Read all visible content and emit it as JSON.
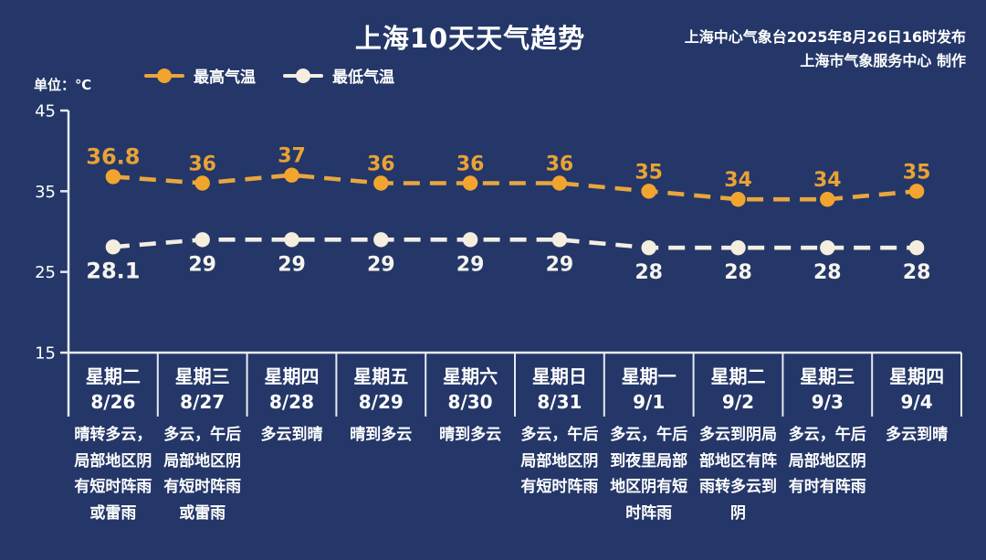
{
  "page": {
    "background": "#243768",
    "text_color": "#FFFFFF"
  },
  "header": {
    "title": "上海10天天气趋势",
    "publisher_line1": "上海中心气象台2025年8月26日16时发布",
    "publisher_line2": "上海市气象服务中心 制作"
  },
  "unit_label": "单位：℃",
  "chart_data": {
    "type": "line",
    "title": "上海10天天气趋势",
    "line_style": "dashed",
    "grid": false,
    "legend_position": "top-left",
    "axis_color": "#E6EAF2",
    "y_axis": {
      "min": 15,
      "max": 45,
      "ticks": [
        45,
        35,
        25,
        15
      ],
      "unit": "℃"
    },
    "categories": [
      {
        "weekday": "星期二",
        "date": "8/26",
        "desc": "晴转多云，局部地区阴有短时阵雨或雷雨"
      },
      {
        "weekday": "星期三",
        "date": "8/27",
        "desc": "多云，午后局部地区阴有短时阵雨或雷雨"
      },
      {
        "weekday": "星期四",
        "date": "8/28",
        "desc": "多云到晴"
      },
      {
        "weekday": "星期五",
        "date": "8/29",
        "desc": "晴到多云"
      },
      {
        "weekday": "星期六",
        "date": "8/30",
        "desc": "晴到多云"
      },
      {
        "weekday": "星期日",
        "date": "8/31",
        "desc": "多云，午后局部地区阴有短时阵雨"
      },
      {
        "weekday": "星期一",
        "date": "9/1",
        "desc": "多云，午后到夜里局部地区阴有短时阵雨"
      },
      {
        "weekday": "星期二",
        "date": "9/2",
        "desc": "多云到阴局部地区有阵雨转多云到阴"
      },
      {
        "weekday": "星期三",
        "date": "9/3",
        "desc": "多云，午后局部地区阴有时有阵雨"
      },
      {
        "weekday": "星期四",
        "date": "9/4",
        "desc": "多云到晴"
      }
    ],
    "series": [
      {
        "name": "最高气温",
        "color": "#E9A63E",
        "dot_color": "#F2A52E",
        "label_color": "#E9A236",
        "values": [
          36.8,
          36,
          37,
          36,
          36,
          36,
          35,
          34,
          34,
          35
        ]
      },
      {
        "name": "最低气温",
        "color": "#F2EEE4",
        "dot_color": "#F5EEDF",
        "label_color": "#F6F4EE",
        "values": [
          28.1,
          29,
          29,
          29,
          29,
          29,
          28,
          28,
          28,
          28
        ]
      }
    ]
  }
}
